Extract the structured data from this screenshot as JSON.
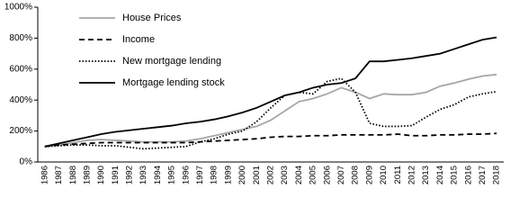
{
  "chart_data": {
    "type": "line",
    "categories": [
      "1986",
      "1987",
      "1988",
      "1989",
      "1990",
      "1991",
      "1992",
      "1993",
      "1994",
      "1995",
      "1996",
      "1997",
      "1998",
      "1999",
      "2000",
      "2001",
      "2002",
      "2003",
      "2004",
      "2005",
      "2006",
      "2007",
      "2008",
      "2009",
      "2010",
      "2011",
      "2012",
      "2013",
      "2014",
      "2015",
      "2016",
      "2017",
      "2018"
    ],
    "series": [
      {
        "name": "House Prices",
        "color": "#a6a6a6",
        "style": "solid",
        "values": [
          100,
          110,
          125,
          140,
          145,
          140,
          135,
          130,
          130,
          130,
          135,
          150,
          170,
          190,
          210,
          230,
          270,
          330,
          390,
          410,
          440,
          480,
          450,
          410,
          440,
          435,
          435,
          450,
          490,
          510,
          535,
          555,
          565
        ]
      },
      {
        "name": "Income",
        "color": "#000000",
        "style": "dashed",
        "values": [
          100,
          110,
          115,
          120,
          125,
          125,
          125,
          125,
          125,
          125,
          125,
          130,
          135,
          140,
          145,
          150,
          160,
          165,
          165,
          170,
          170,
          175,
          175,
          175,
          175,
          180,
          170,
          170,
          175,
          175,
          180,
          180,
          185
        ]
      },
      {
        "name": "New mortgage lending",
        "color": "#000000",
        "style": "dotted",
        "values": [
          100,
          105,
          110,
          110,
          105,
          105,
          95,
          85,
          90,
          95,
          100,
          130,
          150,
          180,
          200,
          260,
          350,
          430,
          450,
          440,
          520,
          540,
          450,
          250,
          230,
          230,
          235,
          290,
          340,
          370,
          420,
          440,
          455
        ]
      },
      {
        "name": "Mortgage lending stock",
        "color": "#000000",
        "style": "solid",
        "values": [
          100,
          120,
          140,
          160,
          180,
          195,
          205,
          215,
          225,
          235,
          250,
          260,
          275,
          295,
          320,
          350,
          390,
          430,
          450,
          480,
          500,
          510,
          540,
          650,
          650,
          660,
          670,
          685,
          700,
          730,
          760,
          790,
          805
        ]
      }
    ],
    "ylim": [
      0,
      1000
    ],
    "yticks": [
      {
        "value": 0,
        "label": "0%"
      },
      {
        "value": 200,
        "label": "200%"
      },
      {
        "value": 400,
        "label": "400%"
      },
      {
        "value": 600,
        "label": "600%"
      },
      {
        "value": 800,
        "label": "800%"
      },
      {
        "value": 1000,
        "label": "1000%"
      }
    ],
    "grid": false
  }
}
